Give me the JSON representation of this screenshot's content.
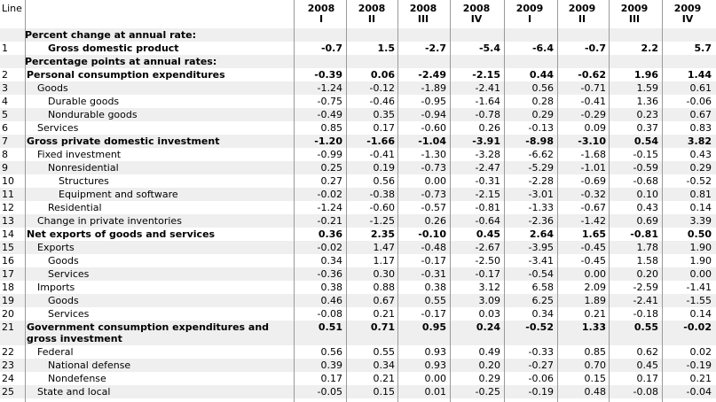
{
  "header": {
    "line_label": "Line",
    "columns": [
      {
        "year": "2008",
        "quarter": "I"
      },
      {
        "year": "2008",
        "quarter": "II"
      },
      {
        "year": "2008",
        "quarter": "III"
      },
      {
        "year": "2008",
        "quarter": "IV"
      },
      {
        "year": "2009",
        "quarter": "I"
      },
      {
        "year": "2009",
        "quarter": "II"
      },
      {
        "year": "2009",
        "quarter": "III"
      },
      {
        "year": "2009",
        "quarter": "IV"
      }
    ]
  },
  "sections": {
    "pct_change": "Percent change at annual rate:",
    "pct_points": "Percentage points at annual rates:"
  },
  "rows": [
    {
      "line": "1",
      "label": "Gross domestic product",
      "indent": 1,
      "bold": true,
      "values": [
        "-0.7",
        "1.5",
        "-2.7",
        "-5.4",
        "-6.4",
        "-0.7",
        "2.2",
        "5.7"
      ]
    },
    {
      "line": "2",
      "label": "Personal consumption expenditures",
      "indent": 0,
      "bold": true,
      "values": [
        "-0.39",
        "0.06",
        "-2.49",
        "-2.15",
        "0.44",
        "-0.62",
        "1.96",
        "1.44"
      ]
    },
    {
      "line": "3",
      "label": "Goods",
      "indent": 1,
      "bold": false,
      "values": [
        "-1.24",
        "-0.12",
        "-1.89",
        "-2.41",
        "0.56",
        "-0.71",
        "1.59",
        "0.61"
      ]
    },
    {
      "line": "4",
      "label": "Durable goods",
      "indent": 2,
      "bold": false,
      "values": [
        "-0.75",
        "-0.46",
        "-0.95",
        "-1.64",
        "0.28",
        "-0.41",
        "1.36",
        "-0.06"
      ]
    },
    {
      "line": "5",
      "label": "Nondurable goods",
      "indent": 2,
      "bold": false,
      "values": [
        "-0.49",
        "0.35",
        "-0.94",
        "-0.78",
        "0.29",
        "-0.29",
        "0.23",
        "0.67"
      ]
    },
    {
      "line": "6",
      "label": "Services",
      "indent": 1,
      "bold": false,
      "values": [
        "0.85",
        "0.17",
        "-0.60",
        "0.26",
        "-0.13",
        "0.09",
        "0.37",
        "0.83"
      ]
    },
    {
      "line": "7",
      "label": "Gross private domestic investment",
      "indent": 0,
      "bold": true,
      "values": [
        "-1.20",
        "-1.66",
        "-1.04",
        "-3.91",
        "-8.98",
        "-3.10",
        "0.54",
        "3.82"
      ]
    },
    {
      "line": "8",
      "label": "Fixed investment",
      "indent": 1,
      "bold": false,
      "values": [
        "-0.99",
        "-0.41",
        "-1.30",
        "-3.28",
        "-6.62",
        "-1.68",
        "-0.15",
        "0.43"
      ]
    },
    {
      "line": "9",
      "label": "Nonresidential",
      "indent": 2,
      "bold": false,
      "values": [
        "0.25",
        "0.19",
        "-0.73",
        "-2.47",
        "-5.29",
        "-1.01",
        "-0.59",
        "0.29"
      ]
    },
    {
      "line": "10",
      "label": "Structures",
      "indent": 3,
      "bold": false,
      "values": [
        "0.27",
        "0.56",
        "0.00",
        "-0.31",
        "-2.28",
        "-0.69",
        "-0.68",
        "-0.52"
      ]
    },
    {
      "line": "11",
      "label": "Equipment and software",
      "indent": 3,
      "bold": false,
      "values": [
        "-0.02",
        "-0.38",
        "-0.73",
        "-2.15",
        "-3.01",
        "-0.32",
        "0.10",
        "0.81"
      ]
    },
    {
      "line": "12",
      "label": "Residential",
      "indent": 2,
      "bold": false,
      "values": [
        "-1.24",
        "-0.60",
        "-0.57",
        "-0.81",
        "-1.33",
        "-0.67",
        "0.43",
        "0.14"
      ]
    },
    {
      "line": "13",
      "label": "Change in private inventories",
      "indent": 1,
      "bold": false,
      "values": [
        "-0.21",
        "-1.25",
        "0.26",
        "-0.64",
        "-2.36",
        "-1.42",
        "0.69",
        "3.39"
      ]
    },
    {
      "line": "14",
      "label": "Net exports of goods and services",
      "indent": 0,
      "bold": true,
      "values": [
        "0.36",
        "2.35",
        "-0.10",
        "0.45",
        "2.64",
        "1.65",
        "-0.81",
        "0.50"
      ]
    },
    {
      "line": "15",
      "label": "Exports",
      "indent": 1,
      "bold": false,
      "values": [
        "-0.02",
        "1.47",
        "-0.48",
        "-2.67",
        "-3.95",
        "-0.45",
        "1.78",
        "1.90"
      ]
    },
    {
      "line": "16",
      "label": "Goods",
      "indent": 2,
      "bold": false,
      "values": [
        "0.34",
        "1.17",
        "-0.17",
        "-2.50",
        "-3.41",
        "-0.45",
        "1.58",
        "1.90"
      ]
    },
    {
      "line": "17",
      "label": "Services",
      "indent": 2,
      "bold": false,
      "values": [
        "-0.36",
        "0.30",
        "-0.31",
        "-0.17",
        "-0.54",
        "0.00",
        "0.20",
        "0.00"
      ]
    },
    {
      "line": "18",
      "label": "Imports",
      "indent": 1,
      "bold": false,
      "values": [
        "0.38",
        "0.88",
        "0.38",
        "3.12",
        "6.58",
        "2.09",
        "-2.59",
        "-1.41"
      ]
    },
    {
      "line": "19",
      "label": "Goods",
      "indent": 2,
      "bold": false,
      "values": [
        "0.46",
        "0.67",
        "0.55",
        "3.09",
        "6.25",
        "1.89",
        "-2.41",
        "-1.55"
      ]
    },
    {
      "line": "20",
      "label": "Services",
      "indent": 2,
      "bold": false,
      "values": [
        "-0.08",
        "0.21",
        "-0.17",
        "0.03",
        "0.34",
        "0.21",
        "-0.18",
        "0.14"
      ]
    },
    {
      "line": "21",
      "label": "Government consumption expenditures and gross investment",
      "indent": 0,
      "bold": true,
      "tall": true,
      "values": [
        "0.51",
        "0.71",
        "0.95",
        "0.24",
        "-0.52",
        "1.33",
        "0.55",
        "-0.02"
      ]
    },
    {
      "line": "22",
      "label": "Federal",
      "indent": 1,
      "bold": false,
      "values": [
        "0.56",
        "0.55",
        "0.93",
        "0.49",
        "-0.33",
        "0.85",
        "0.62",
        "0.02"
      ]
    },
    {
      "line": "23",
      "label": "National defense",
      "indent": 2,
      "bold": false,
      "values": [
        "0.39",
        "0.34",
        "0.93",
        "0.20",
        "-0.27",
        "0.70",
        "0.45",
        "-0.19"
      ]
    },
    {
      "line": "24",
      "label": "Nondefense",
      "indent": 2,
      "bold": false,
      "values": [
        "0.17",
        "0.21",
        "0.00",
        "0.29",
        "-0.06",
        "0.15",
        "0.17",
        "0.21"
      ]
    },
    {
      "line": "25",
      "label": "State and local",
      "indent": 1,
      "bold": false,
      "values": [
        "-0.05",
        "0.15",
        "0.01",
        "-0.25",
        "-0.19",
        "0.48",
        "-0.08",
        "-0.04"
      ]
    }
  ]
}
